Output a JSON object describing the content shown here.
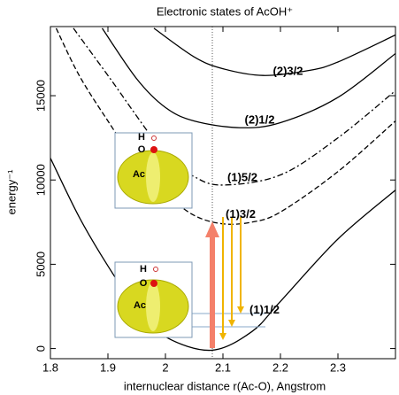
{
  "chart_data": {
    "type": "line",
    "title": "Electronic states of AcOH⁺",
    "x_label": "internuclear distance r(Ac-O), Angstrom",
    "y_label": "energy⁻¹",
    "xlim": [
      1.8,
      2.4
    ],
    "ylim": [
      -600,
      19100
    ],
    "xticks": [
      1.8,
      1.9,
      2,
      2.1,
      2.2,
      2.3
    ],
    "yticks": [
      0,
      5000,
      10000,
      15000
    ],
    "series": [
      {
        "name": "(2)3/2",
        "color": "#000000",
        "dash": "solid",
        "label_color": "#1a1acc",
        "x": [
          1.98,
          2.05,
          2.1,
          2.17,
          2.25,
          2.3,
          2.4
        ],
        "values": [
          19000,
          17300,
          16600,
          16200,
          16500,
          17000,
          18600
        ]
      },
      {
        "name": "(2)1/2",
        "color": "#000000",
        "dash": "solid",
        "label_color": "#000000",
        "x": [
          1.89,
          1.95,
          2.0,
          2.05,
          2.13,
          2.2,
          2.3,
          2.4
        ],
        "values": [
          19000,
          16000,
          14300,
          13500,
          13100,
          13400,
          14900,
          17500
        ]
      },
      {
        "name": "(1)5/2",
        "color": "#000000",
        "dash": "dashdot",
        "label_color": "#dd1111",
        "x": [
          1.84,
          1.9,
          2.0,
          2.05,
          2.1,
          2.2,
          2.3,
          2.4
        ],
        "values": [
          19000,
          16200,
          11500,
          10200,
          9700,
          10300,
          12500,
          15300
        ]
      },
      {
        "name": "(1)3/2",
        "color": "#000000",
        "dash": "dashed",
        "label_color": "#1a1acc",
        "x": [
          1.81,
          1.85,
          1.9,
          1.95,
          2.0,
          2.05,
          2.1,
          2.15,
          2.2,
          2.3,
          2.4
        ],
        "values": [
          19000,
          16200,
          13500,
          11000,
          9200,
          7900,
          7400,
          7500,
          8100,
          10500,
          13500
        ]
      },
      {
        "name": "(1)1/2",
        "color": "#000000",
        "dash": "solid",
        "label_color": "#000000",
        "x": [
          1.8,
          1.85,
          1.9,
          1.95,
          2.0,
          2.08,
          2.15,
          2.2,
          2.3,
          2.4
        ],
        "values": [
          11300,
          7800,
          4900,
          2400,
          700,
          -100,
          1000,
          2800,
          6500,
          9400
        ]
      }
    ],
    "insets": [
      {
        "labels": [
          "H",
          "O",
          "Ac"
        ]
      },
      {
        "labels": [
          "H",
          "O",
          "Ac"
        ]
      }
    ]
  }
}
